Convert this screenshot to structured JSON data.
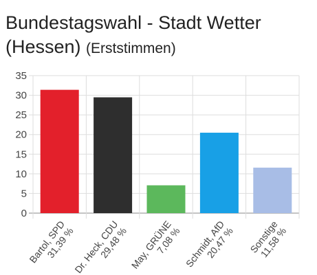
{
  "title": "Bundestagswahl - Stadt Wetter (Hessen)",
  "subtitle": "(Erststimmen)",
  "chart_data": {
    "type": "bar",
    "title": "Bundestagswahl - Stadt Wetter (Hessen)",
    "subtitle": "(Erststimmen)",
    "xlabel": "",
    "ylabel": "",
    "ylim": [
      0,
      35
    ],
    "yticks": [
      0,
      5,
      10,
      15,
      20,
      25,
      30,
      35
    ],
    "grid": true,
    "legend": "none",
    "categories": [
      {
        "name": "Bartol, SPD",
        "value_label": "31,39 %"
      },
      {
        "name": "Dr. Heck, CDU",
        "value_label": "29,48 %"
      },
      {
        "name": "May, GRÜNE",
        "value_label": "7,08 %"
      },
      {
        "name": "Schmidt, AfD",
        "value_label": "20,47 %"
      },
      {
        "name": "Sonstige",
        "value_label": "11,58 %"
      }
    ],
    "values": [
      31.39,
      29.48,
      7.08,
      20.47,
      11.58
    ],
    "colors": [
      "#e3202b",
      "#2e2e2e",
      "#5cb85c",
      "#18a0e6",
      "#a8bde6"
    ]
  }
}
